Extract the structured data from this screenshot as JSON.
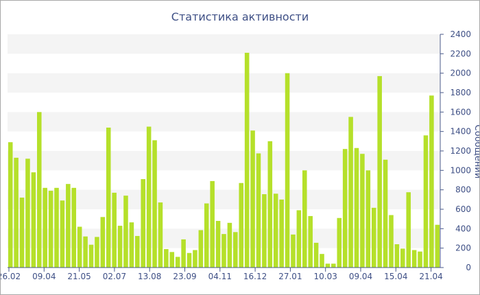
{
  "chart_data": {
    "type": "bar",
    "title": "Статистика активности",
    "xlabel": "",
    "ylabel": "Сообщений",
    "ylim": [
      0,
      2400
    ],
    "yticks": [
      0,
      200,
      400,
      600,
      800,
      1000,
      1200,
      1400,
      1600,
      1800,
      2000,
      2200,
      2400
    ],
    "xtick_labels": [
      "26.02",
      "09.04",
      "21.05",
      "02.07",
      "13.08",
      "23.09",
      "04.11",
      "16.12",
      "27.01",
      "10.03",
      "09.04",
      "15.04",
      "21.04"
    ],
    "y_axis_side": "right",
    "grid": "horizontal bands",
    "bar_color": "#b5e02a",
    "values": [
      1290,
      1130,
      720,
      1120,
      980,
      1600,
      820,
      790,
      820,
      690,
      860,
      820,
      420,
      320,
      235,
      315,
      520,
      1440,
      770,
      430,
      740,
      465,
      325,
      910,
      1450,
      1310,
      670,
      190,
      160,
      110,
      290,
      150,
      180,
      385,
      660,
      890,
      480,
      345,
      460,
      365,
      870,
      2210,
      1410,
      1175,
      755,
      1300,
      760,
      700,
      2000,
      340,
      590,
      1000,
      530,
      255,
      140,
      40,
      40,
      510,
      1220,
      1550,
      1230,
      1170,
      1000,
      615,
      1970,
      1110,
      540,
      240,
      195,
      775,
      180,
      165,
      1360,
      1770,
      440
    ]
  }
}
